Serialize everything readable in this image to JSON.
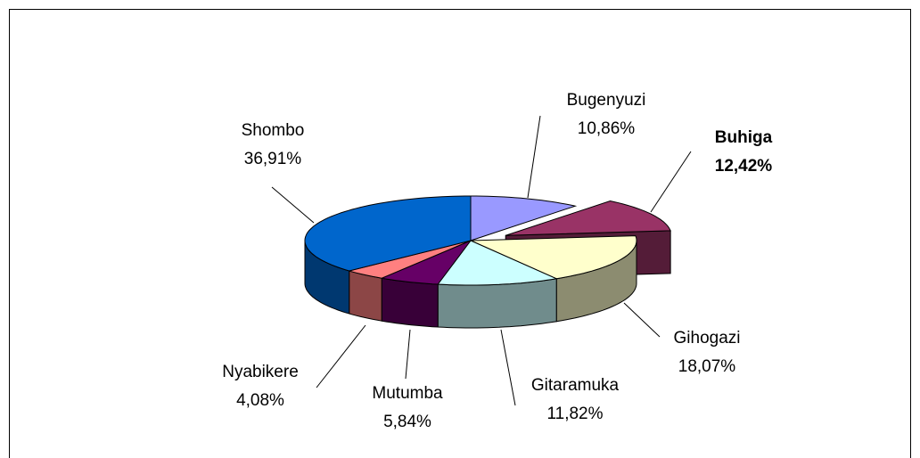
{
  "chart_data": {
    "type": "pie3d",
    "categories": [
      "Bugenyuzi",
      "Buhiga",
      "Gihogazi",
      "Gitaramuka",
      "Mutumba",
      "Nyabikere",
      "Shombo"
    ],
    "values": [
      10.86,
      12.42,
      18.07,
      11.82,
      5.84,
      4.08,
      36.91
    ],
    "value_labels": [
      "10,86%",
      "12,42%",
      "18,07%",
      "11,82%",
      "5,84%",
      "4,08%",
      "36,91%"
    ],
    "colors": [
      "#9999ff",
      "#993366",
      "#ffffcc",
      "#ccffff",
      "#660066",
      "#ff8080",
      "#0066cc"
    ],
    "exploded_slice": "Buhiga"
  }
}
